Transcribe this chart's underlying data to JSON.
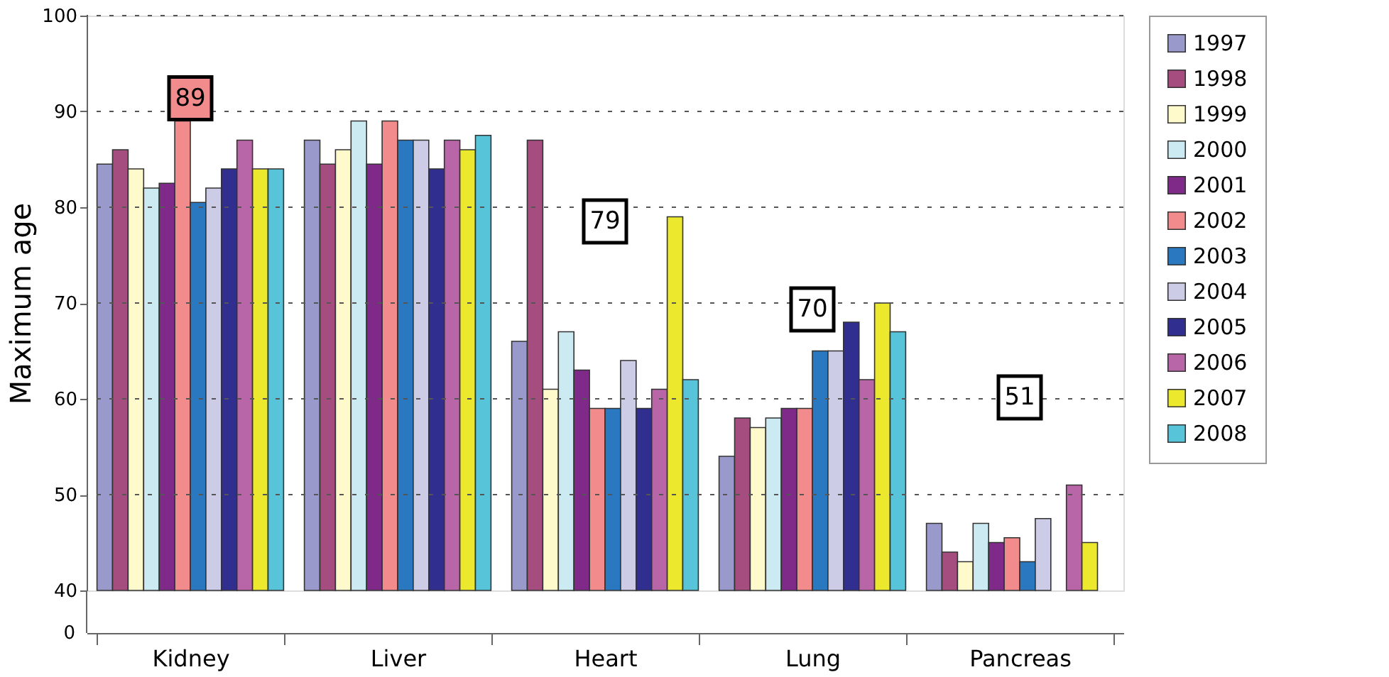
{
  "chart_data": {
    "type": "bar",
    "ylabel": "Maximum age",
    "categories": [
      "Kidney",
      "Liver",
      "Heart",
      "Lung",
      "Pancreas"
    ],
    "series": [
      {
        "name": "1997",
        "color": "#9999cc",
        "values": [
          84.5,
          87,
          66,
          54,
          47
        ]
      },
      {
        "name": "1998",
        "color": "#a64d80",
        "values": [
          86,
          84.5,
          87,
          58,
          44
        ]
      },
      {
        "name": "1999",
        "color": "#fffacc",
        "values": [
          84,
          86,
          61,
          57,
          43
        ]
      },
      {
        "name": "2000",
        "color": "#cceaf2",
        "values": [
          82,
          89,
          67,
          58,
          47
        ]
      },
      {
        "name": "2001",
        "color": "#7f2a89",
        "values": [
          82.5,
          84.5,
          63,
          59,
          45
        ]
      },
      {
        "name": "2002",
        "color": "#f28c8c",
        "values": [
          89,
          89,
          59,
          59,
          45.5
        ]
      },
      {
        "name": "2003",
        "color": "#2a78bf",
        "values": [
          80.5,
          87,
          59,
          65,
          43
        ]
      },
      {
        "name": "2004",
        "color": "#cccce6",
        "values": [
          82,
          87,
          64,
          65,
          47.5
        ]
      },
      {
        "name": "2005",
        "color": "#302e8f",
        "values": [
          84,
          84,
          59,
          68,
          null
        ]
      },
      {
        "name": "2006",
        "color": "#b866a8",
        "values": [
          87,
          87,
          61,
          62,
          51
        ]
      },
      {
        "name": "2007",
        "color": "#ebe82e",
        "values": [
          84,
          86,
          79,
          70,
          45
        ]
      },
      {
        "name": "2008",
        "color": "#57c4d9",
        "values": [
          84,
          87.5,
          62,
          67,
          null
        ]
      }
    ],
    "ylim": [
      40,
      100
    ],
    "yticks": [
      40,
      50,
      60,
      70,
      80,
      90,
      100
    ],
    "grid": "y",
    "legend": "right",
    "annotations": [
      "0",
      {
        "text": "89",
        "x": "Kidney",
        "y": 89
      },
      "79",
      "70",
      "51"
    ]
  }
}
